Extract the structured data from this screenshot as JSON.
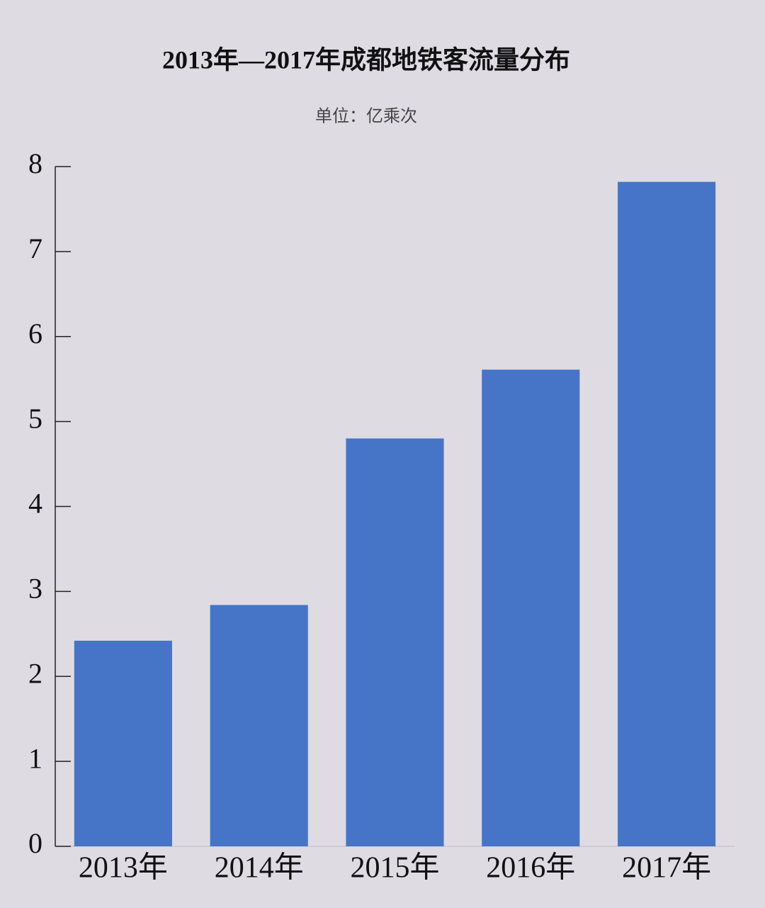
{
  "chart_data": {
    "type": "bar",
    "title": "2013年—2017年成都地铁客流量分布",
    "subtitle": "单位：亿乘次",
    "categories": [
      "2013年",
      "2014年",
      "2015年",
      "2016年",
      "2017年"
    ],
    "values": [
      2.42,
      2.84,
      4.8,
      5.61,
      7.82
    ],
    "color": "#4674c7",
    "ylim": [
      0,
      8
    ],
    "yticks": [
      0,
      1,
      2,
      3,
      4,
      5,
      6,
      7,
      8
    ],
    "grid": false
  }
}
